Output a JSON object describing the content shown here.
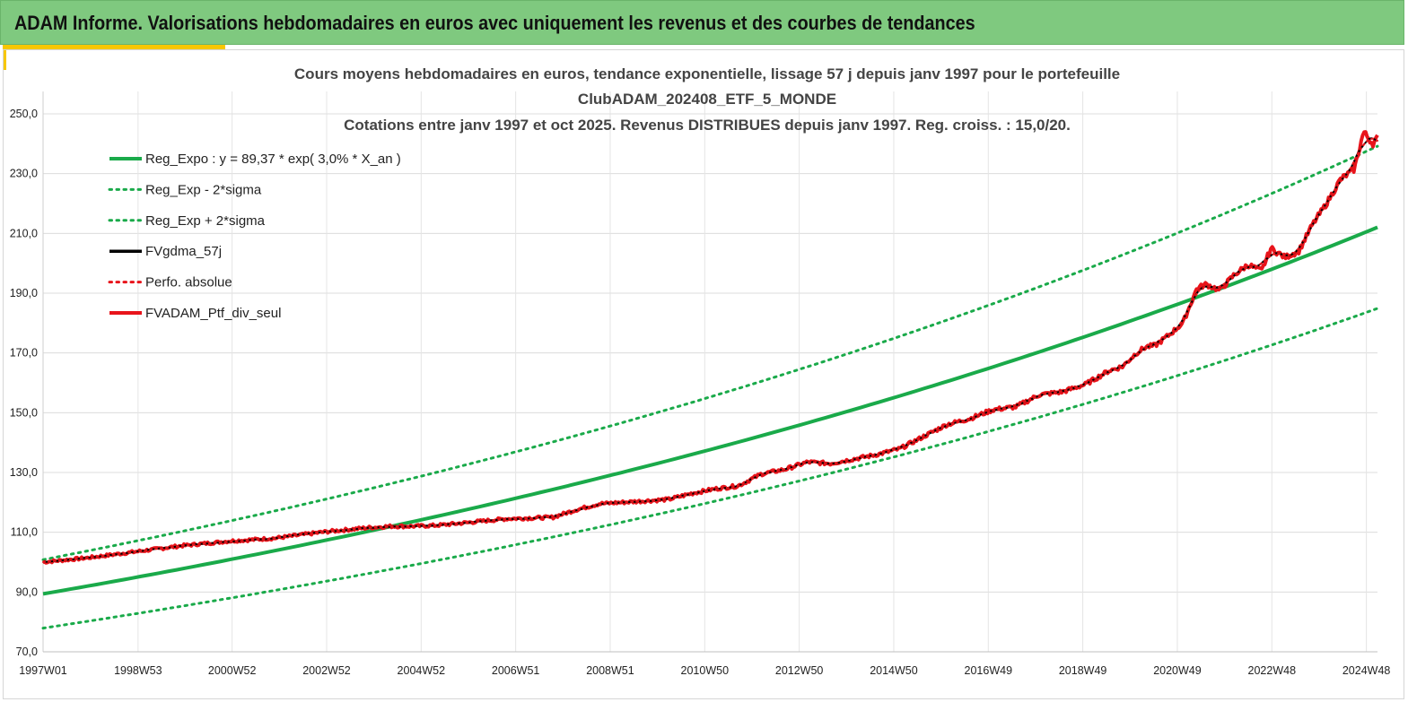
{
  "header": {
    "title": "ADAM Informe. Valorisations hebdomadaires en euros avec uniquement les revenus et des courbes de tendances"
  },
  "colors": {
    "banner": "#7fc97f",
    "accent": "#f7c700",
    "green": "#1aaa4a",
    "red": "#e8141b",
    "black": "#000000"
  },
  "chart_data": {
    "type": "line",
    "title_lines": [
      "Cours moyens hebdomadaires  en euros, tendance exponentielle, lissage 57 j depuis janv 1997 pour le portefeuille",
      "ClubADAM_202408_ETF_5_MONDE",
      "Cotations  entre janv 1997 et oct 2025. Revenus DISTRIBUES depuis janv 1997. Reg. croiss. : 15,0/20."
    ],
    "xlabel": "",
    "ylabel": "",
    "ylim": [
      70,
      250
    ],
    "xlim": [
      0,
      28.8
    ],
    "grid": true,
    "legend_position": "top-left",
    "y_ticks": [
      "70,0",
      "90,0",
      "110,0",
      "130,0",
      "150,0",
      "170,0",
      "190,0",
      "210,0",
      "230,0",
      "250,0"
    ],
    "x_ticks": [
      {
        "label": "1997W01",
        "x": 0.0
      },
      {
        "label": "1998W53",
        "x": 2.05
      },
      {
        "label": "2000W52",
        "x": 4.08
      },
      {
        "label": "2002W52",
        "x": 6.12
      },
      {
        "label": "2004W52",
        "x": 8.16
      },
      {
        "label": "2006W51",
        "x": 10.2
      },
      {
        "label": "2008W51",
        "x": 12.24
      },
      {
        "label": "2010W50",
        "x": 14.28
      },
      {
        "label": "2012W50",
        "x": 16.32
      },
      {
        "label": "2014W50",
        "x": 18.36
      },
      {
        "label": "2016W49",
        "x": 20.4
      },
      {
        "label": "2018W49",
        "x": 22.44
      },
      {
        "label": "2020W49",
        "x": 24.48
      },
      {
        "label": "2022W48",
        "x": 26.52
      },
      {
        "label": "2024W48",
        "x": 28.56
      }
    ],
    "regression": {
      "a": 89.37,
      "rate": 0.03,
      "sigma_factor": 0.128
    },
    "series": [
      {
        "name": "Reg_Expo : y = 89,37 * exp( 3,0% *  X_an )",
        "color": "#1aaa4a",
        "style": "solid",
        "width": 4
      },
      {
        "name": "Reg_Exp - 2*sigma",
        "color": "#1aaa4a",
        "style": "dotted",
        "width": 3
      },
      {
        "name": "Reg_Exp + 2*sigma",
        "color": "#1aaa4a",
        "style": "dotted",
        "width": 3
      },
      {
        "name": "FVgdma_57j",
        "color": "#000000",
        "style": "solid",
        "width": 3
      },
      {
        "name": "Perfo. absolue",
        "color": "#e8141b",
        "style": "dotted",
        "width": 3
      },
      {
        "name": "FVADAM_Ptf_div_seul",
        "color": "#e8141b",
        "style": "solid",
        "width": 4
      }
    ],
    "portfolio": {
      "x": [
        0,
        1,
        2,
        3,
        4,
        5,
        6,
        7,
        7.5,
        8,
        8.5,
        9,
        10,
        11,
        11.5,
        12,
        12.5,
        13,
        13.5,
        14,
        14.5,
        15,
        15.5,
        16,
        16.5,
        17,
        17.5,
        18,
        18.5,
        19,
        19.5,
        20,
        20.5,
        21,
        21.5,
        22,
        22.5,
        23,
        23.3,
        23.6,
        23.8,
        24,
        24.3,
        24.6,
        24.9,
        25.1,
        25.4,
        25.7,
        26,
        26.3,
        26.5,
        26.8,
        27.1,
        27.4,
        27.7,
        28,
        28.3,
        28.5,
        28.7,
        28.8
      ],
      "y": [
        100,
        101.5,
        103.5,
        105.5,
        107,
        108,
        110,
        111.5,
        112,
        112,
        112.3,
        113,
        114.5,
        115,
        117.5,
        119.5,
        120,
        120.5,
        121,
        123,
        124.5,
        125.5,
        129.5,
        131,
        133.5,
        133,
        134.5,
        136,
        138,
        142,
        146,
        148,
        151,
        152,
        156,
        157,
        159.5,
        164,
        165.5,
        170,
        172,
        172.5,
        176,
        180,
        191.5,
        193,
        191,
        196,
        199.5,
        197.5,
        205,
        202,
        204,
        213,
        220,
        228,
        231.5,
        244,
        240,
        242
      ]
    }
  }
}
